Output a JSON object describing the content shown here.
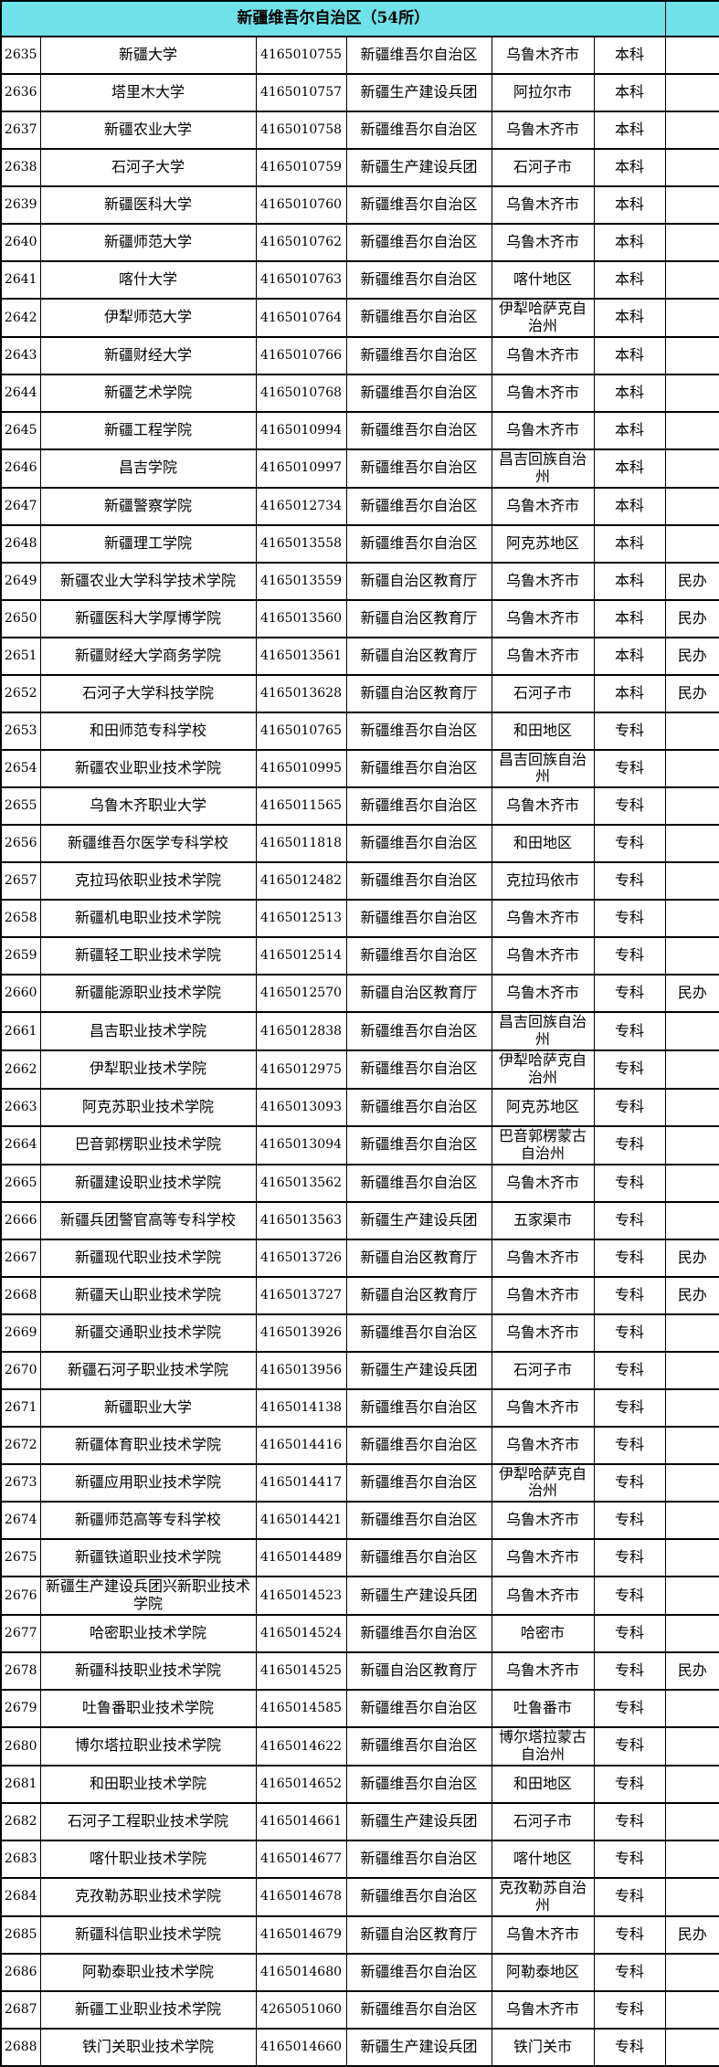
{
  "table": {
    "title": "新疆维吾尔自治区（54所）",
    "colors": {
      "header_bg": "#6EE1E9",
      "border": "#000000",
      "text": "#000000",
      "row_bg": "#FFFFFF"
    },
    "rows": [
      {
        "no": "2635",
        "name": "新疆大学",
        "code": "4165010755",
        "supervisor": "新疆维吾尔自治区",
        "city": "乌鲁木齐市",
        "level": "本科",
        "type": ""
      },
      {
        "no": "2636",
        "name": "塔里木大学",
        "code": "4165010757",
        "supervisor": "新疆生产建设兵团",
        "city": "阿拉尔市",
        "level": "本科",
        "type": ""
      },
      {
        "no": "2637",
        "name": "新疆农业大学",
        "code": "4165010758",
        "supervisor": "新疆维吾尔自治区",
        "city": "乌鲁木齐市",
        "level": "本科",
        "type": ""
      },
      {
        "no": "2638",
        "name": "石河子大学",
        "code": "4165010759",
        "supervisor": "新疆生产建设兵团",
        "city": "石河子市",
        "level": "本科",
        "type": ""
      },
      {
        "no": "2639",
        "name": "新疆医科大学",
        "code": "4165010760",
        "supervisor": "新疆维吾尔自治区",
        "city": "乌鲁木齐市",
        "level": "本科",
        "type": ""
      },
      {
        "no": "2640",
        "name": "新疆师范大学",
        "code": "4165010762",
        "supervisor": "新疆维吾尔自治区",
        "city": "乌鲁木齐市",
        "level": "本科",
        "type": ""
      },
      {
        "no": "2641",
        "name": "喀什大学",
        "code": "4165010763",
        "supervisor": "新疆维吾尔自治区",
        "city": "喀什地区",
        "level": "本科",
        "type": ""
      },
      {
        "no": "2642",
        "name": "伊犁师范大学",
        "code": "4165010764",
        "supervisor": "新疆维吾尔自治区",
        "city": "伊犁哈萨克自治州",
        "level": "本科",
        "type": ""
      },
      {
        "no": "2643",
        "name": "新疆财经大学",
        "code": "4165010766",
        "supervisor": "新疆维吾尔自治区",
        "city": "乌鲁木齐市",
        "level": "本科",
        "type": ""
      },
      {
        "no": "2644",
        "name": "新疆艺术学院",
        "code": "4165010768",
        "supervisor": "新疆维吾尔自治区",
        "city": "乌鲁木齐市",
        "level": "本科",
        "type": ""
      },
      {
        "no": "2645",
        "name": "新疆工程学院",
        "code": "4165010994",
        "supervisor": "新疆维吾尔自治区",
        "city": "乌鲁木齐市",
        "level": "本科",
        "type": ""
      },
      {
        "no": "2646",
        "name": "昌吉学院",
        "code": "4165010997",
        "supervisor": "新疆维吾尔自治区",
        "city": "昌吉回族自治州",
        "level": "本科",
        "type": ""
      },
      {
        "no": "2647",
        "name": "新疆警察学院",
        "code": "4165012734",
        "supervisor": "新疆维吾尔自治区",
        "city": "乌鲁木齐市",
        "level": "本科",
        "type": ""
      },
      {
        "no": "2648",
        "name": "新疆理工学院",
        "code": "4165013558",
        "supervisor": "新疆维吾尔自治区",
        "city": "阿克苏地区",
        "level": "本科",
        "type": ""
      },
      {
        "no": "2649",
        "name": "新疆农业大学科学技术学院",
        "code": "4165013559",
        "supervisor": "新疆自治区教育厅",
        "city": "乌鲁木齐市",
        "level": "本科",
        "type": "民办"
      },
      {
        "no": "2650",
        "name": "新疆医科大学厚博学院",
        "code": "4165013560",
        "supervisor": "新疆自治区教育厅",
        "city": "乌鲁木齐市",
        "level": "本科",
        "type": "民办"
      },
      {
        "no": "2651",
        "name": "新疆财经大学商务学院",
        "code": "4165013561",
        "supervisor": "新疆自治区教育厅",
        "city": "乌鲁木齐市",
        "level": "本科",
        "type": "民办"
      },
      {
        "no": "2652",
        "name": "石河子大学科技学院",
        "code": "4165013628",
        "supervisor": "新疆自治区教育厅",
        "city": "石河子市",
        "level": "本科",
        "type": "民办"
      },
      {
        "no": "2653",
        "name": "和田师范专科学校",
        "code": "4165010765",
        "supervisor": "新疆维吾尔自治区",
        "city": "和田地区",
        "level": "专科",
        "type": ""
      },
      {
        "no": "2654",
        "name": "新疆农业职业技术学院",
        "code": "4165010995",
        "supervisor": "新疆维吾尔自治区",
        "city": "昌吉回族自治州",
        "level": "专科",
        "type": ""
      },
      {
        "no": "2655",
        "name": "乌鲁木齐职业大学",
        "code": "4165011565",
        "supervisor": "新疆维吾尔自治区",
        "city": "乌鲁木齐市",
        "level": "专科",
        "type": ""
      },
      {
        "no": "2656",
        "name": "新疆维吾尔医学专科学校",
        "code": "4165011818",
        "supervisor": "新疆维吾尔自治区",
        "city": "和田地区",
        "level": "专科",
        "type": ""
      },
      {
        "no": "2657",
        "name": "克拉玛依职业技术学院",
        "code": "4165012482",
        "supervisor": "新疆维吾尔自治区",
        "city": "克拉玛依市",
        "level": "专科",
        "type": ""
      },
      {
        "no": "2658",
        "name": "新疆机电职业技术学院",
        "code": "4165012513",
        "supervisor": "新疆维吾尔自治区",
        "city": "乌鲁木齐市",
        "level": "专科",
        "type": ""
      },
      {
        "no": "2659",
        "name": "新疆轻工职业技术学院",
        "code": "4165012514",
        "supervisor": "新疆维吾尔自治区",
        "city": "乌鲁木齐市",
        "level": "专科",
        "type": ""
      },
      {
        "no": "2660",
        "name": "新疆能源职业技术学院",
        "code": "4165012570",
        "supervisor": "新疆自治区教育厅",
        "city": "乌鲁木齐市",
        "level": "专科",
        "type": "民办"
      },
      {
        "no": "2661",
        "name": "昌吉职业技术学院",
        "code": "4165012838",
        "supervisor": "新疆维吾尔自治区",
        "city": "昌吉回族自治州",
        "level": "专科",
        "type": ""
      },
      {
        "no": "2662",
        "name": "伊犁职业技术学院",
        "code": "4165012975",
        "supervisor": "新疆维吾尔自治区",
        "city": "伊犁哈萨克自治州",
        "level": "专科",
        "type": ""
      },
      {
        "no": "2663",
        "name": "阿克苏职业技术学院",
        "code": "4165013093",
        "supervisor": "新疆维吾尔自治区",
        "city": "阿克苏地区",
        "level": "专科",
        "type": ""
      },
      {
        "no": "2664",
        "name": "巴音郭楞职业技术学院",
        "code": "4165013094",
        "supervisor": "新疆维吾尔自治区",
        "city": "巴音郭楞蒙古自治州",
        "level": "专科",
        "type": ""
      },
      {
        "no": "2665",
        "name": "新疆建设职业技术学院",
        "code": "4165013562",
        "supervisor": "新疆维吾尔自治区",
        "city": "乌鲁木齐市",
        "level": "专科",
        "type": ""
      },
      {
        "no": "2666",
        "name": "新疆兵团警官高等专科学校",
        "code": "4165013563",
        "supervisor": "新疆生产建设兵团",
        "city": "五家渠市",
        "level": "专科",
        "type": ""
      },
      {
        "no": "2667",
        "name": "新疆现代职业技术学院",
        "code": "4165013726",
        "supervisor": "新疆自治区教育厅",
        "city": "乌鲁木齐市",
        "level": "专科",
        "type": "民办"
      },
      {
        "no": "2668",
        "name": "新疆天山职业技术学院",
        "code": "4165013727",
        "supervisor": "新疆自治区教育厅",
        "city": "乌鲁木齐市",
        "level": "专科",
        "type": "民办"
      },
      {
        "no": "2669",
        "name": "新疆交通职业技术学院",
        "code": "4165013926",
        "supervisor": "新疆维吾尔自治区",
        "city": "乌鲁木齐市",
        "level": "专科",
        "type": ""
      },
      {
        "no": "2670",
        "name": "新疆石河子职业技术学院",
        "code": "4165013956",
        "supervisor": "新疆生产建设兵团",
        "city": "石河子市",
        "level": "专科",
        "type": ""
      },
      {
        "no": "2671",
        "name": "新疆职业大学",
        "code": "4165014138",
        "supervisor": "新疆维吾尔自治区",
        "city": "乌鲁木齐市",
        "level": "专科",
        "type": ""
      },
      {
        "no": "2672",
        "name": "新疆体育职业技术学院",
        "code": "4165014416",
        "supervisor": "新疆维吾尔自治区",
        "city": "乌鲁木齐市",
        "level": "专科",
        "type": ""
      },
      {
        "no": "2673",
        "name": "新疆应用职业技术学院",
        "code": "4165014417",
        "supervisor": "新疆维吾尔自治区",
        "city": "伊犁哈萨克自治州",
        "level": "专科",
        "type": ""
      },
      {
        "no": "2674",
        "name": "新疆师范高等专科学校",
        "code": "4165014421",
        "supervisor": "新疆维吾尔自治区",
        "city": "乌鲁木齐市",
        "level": "专科",
        "type": ""
      },
      {
        "no": "2675",
        "name": "新疆铁道职业技术学院",
        "code": "4165014489",
        "supervisor": "新疆维吾尔自治区",
        "city": "乌鲁木齐市",
        "level": "专科",
        "type": ""
      },
      {
        "no": "2676",
        "name": "新疆生产建设兵团兴新职业技术学院",
        "code": "4165014523",
        "supervisor": "新疆生产建设兵团",
        "city": "乌鲁木齐市",
        "level": "专科",
        "type": ""
      },
      {
        "no": "2677",
        "name": "哈密职业技术学院",
        "code": "4165014524",
        "supervisor": "新疆维吾尔自治区",
        "city": "哈密市",
        "level": "专科",
        "type": ""
      },
      {
        "no": "2678",
        "name": "新疆科技职业技术学院",
        "code": "4165014525",
        "supervisor": "新疆自治区教育厅",
        "city": "乌鲁木齐市",
        "level": "专科",
        "type": "民办"
      },
      {
        "no": "2679",
        "name": "吐鲁番职业技术学院",
        "code": "4165014585",
        "supervisor": "新疆维吾尔自治区",
        "city": "吐鲁番市",
        "level": "专科",
        "type": ""
      },
      {
        "no": "2680",
        "name": "博尔塔拉职业技术学院",
        "code": "4165014622",
        "supervisor": "新疆维吾尔自治区",
        "city": "博尔塔拉蒙古自治州",
        "level": "专科",
        "type": ""
      },
      {
        "no": "2681",
        "name": "和田职业技术学院",
        "code": "4165014652",
        "supervisor": "新疆维吾尔自治区",
        "city": "和田地区",
        "level": "专科",
        "type": ""
      },
      {
        "no": "2682",
        "name": "石河子工程职业技术学院",
        "code": "4165014661",
        "supervisor": "新疆生产建设兵团",
        "city": "石河子市",
        "level": "专科",
        "type": ""
      },
      {
        "no": "2683",
        "name": "喀什职业技术学院",
        "code": "4165014677",
        "supervisor": "新疆维吾尔自治区",
        "city": "喀什地区",
        "level": "专科",
        "type": ""
      },
      {
        "no": "2684",
        "name": "克孜勒苏职业技术学院",
        "code": "4165014678",
        "supervisor": "新疆维吾尔自治区",
        "city": "克孜勒苏自治州",
        "level": "专科",
        "type": ""
      },
      {
        "no": "2685",
        "name": "新疆科信职业技术学院",
        "code": "4165014679",
        "supervisor": "新疆自治区教育厅",
        "city": "乌鲁木齐市",
        "level": "专科",
        "type": "民办"
      },
      {
        "no": "2686",
        "name": "阿勒泰职业技术学院",
        "code": "4165014680",
        "supervisor": "新疆维吾尔自治区",
        "city": "阿勒泰地区",
        "level": "专科",
        "type": ""
      },
      {
        "no": "2687",
        "name": "新疆工业职业技术学院",
        "code": "4265051060",
        "supervisor": "新疆维吾尔自治区",
        "city": "乌鲁木齐市",
        "level": "专科",
        "type": ""
      },
      {
        "no": "2688",
        "name": "铁门关职业技术学院",
        "code": "4165014660",
        "supervisor": "新疆生产建设兵团",
        "city": "铁门关市",
        "level": "专科",
        "type": ""
      }
    ]
  }
}
